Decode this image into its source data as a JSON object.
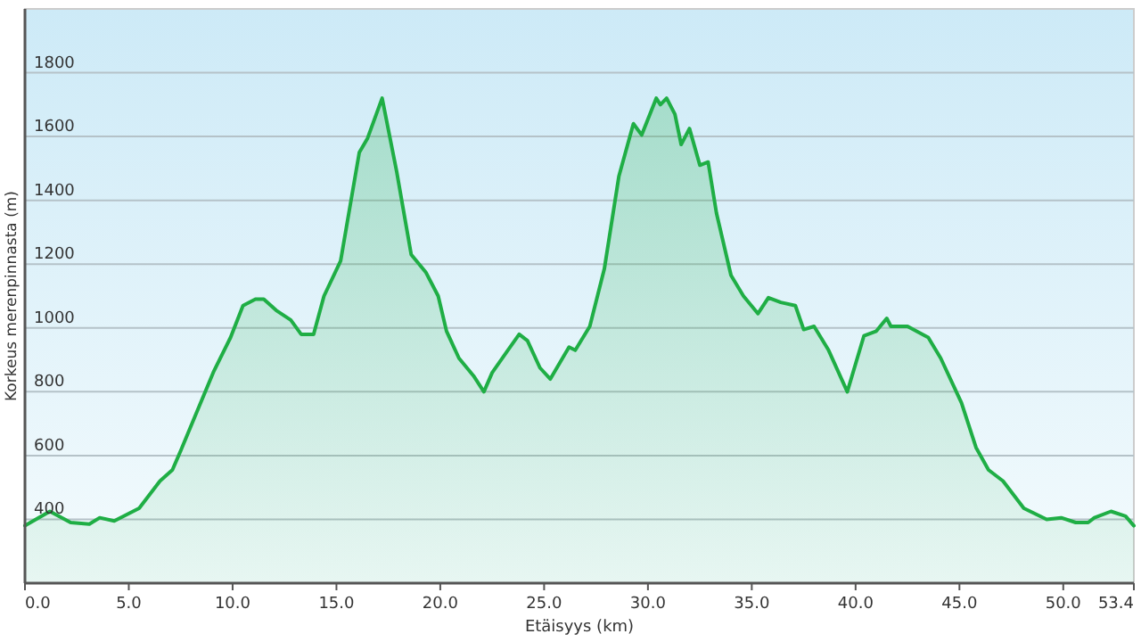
{
  "chart_data": {
    "type": "area",
    "xlabel": "Etäisyys (km)",
    "ylabel": "Korkeus merenpinnasta (m)",
    "xlim": [
      0,
      53.4
    ],
    "ylim": [
      200,
      2000
    ],
    "xticks": [
      {
        "value": 0,
        "label": "0.0"
      },
      {
        "value": 5,
        "label": "5.0"
      },
      {
        "value": 10,
        "label": "10.0"
      },
      {
        "value": 15,
        "label": "15.0"
      },
      {
        "value": 20,
        "label": "20.0"
      },
      {
        "value": 25,
        "label": "25.0"
      },
      {
        "value": 30,
        "label": "30.0"
      },
      {
        "value": 35,
        "label": "35.0"
      },
      {
        "value": 40,
        "label": "40.0"
      },
      {
        "value": 45,
        "label": "45.0"
      },
      {
        "value": 50,
        "label": "50.0"
      },
      53.4
    ],
    "yticks": [
      400,
      600,
      800,
      1000,
      1200,
      1400,
      1600,
      1800
    ],
    "grid": "y",
    "line_style": "solid",
    "series": [
      {
        "color": "#1fae45",
        "x": [
          0,
          1.2,
          2.2,
          3.1,
          3.6,
          4.3,
          5.5,
          6.5,
          7.1,
          7.5,
          8.2,
          9.1,
          9.9,
          10.5,
          11.1,
          11.5,
          12.1,
          12.8,
          13.3,
          13.9,
          14.4,
          15.2,
          16.1,
          16.5,
          17.2,
          17.9,
          18.6,
          19.3,
          19.9,
          20.3,
          20.9,
          21.6,
          22.1,
          22.5,
          23.2,
          23.8,
          24.2,
          24.8,
          25.3,
          26.2,
          26.5,
          27.2,
          27.9,
          28.6,
          29.3,
          29.7,
          30.4,
          30.6,
          30.9,
          31.3,
          31.6,
          32.0,
          32.5,
          32.9,
          33.3,
          34.0,
          34.6,
          35.3,
          35.8,
          36.4,
          37.1,
          37.5,
          38.0,
          38.7,
          39.6,
          40.4,
          41.0,
          41.5,
          41.7,
          42.5,
          43.5,
          44.1,
          45.1,
          45.8,
          46.4,
          47.1,
          48.1,
          49.2,
          49.9,
          50.6,
          51.2,
          51.5,
          52.3,
          53.0,
          53.4
        ],
        "values": [
          380,
          425,
          390,
          385,
          405,
          395,
          435,
          520,
          555,
          615,
          725,
          865,
          970,
          1070,
          1090,
          1090,
          1055,
          1025,
          980,
          980,
          1100,
          1210,
          1550,
          1595,
          1720,
          1490,
          1230,
          1175,
          1100,
          990,
          905,
          850,
          800,
          860,
          925,
          980,
          960,
          875,
          840,
          940,
          930,
          1005,
          1185,
          1475,
          1640,
          1605,
          1720,
          1700,
          1720,
          1670,
          1575,
          1625,
          1510,
          1520,
          1360,
          1165,
          1100,
          1045,
          1095,
          1080,
          1070,
          995,
          1005,
          930,
          800,
          975,
          990,
          1030,
          1005,
          1005,
          970,
          905,
          765,
          625,
          555,
          520,
          435,
          400,
          405,
          390,
          390,
          405,
          425,
          410,
          380
        ]
      }
    ]
  }
}
